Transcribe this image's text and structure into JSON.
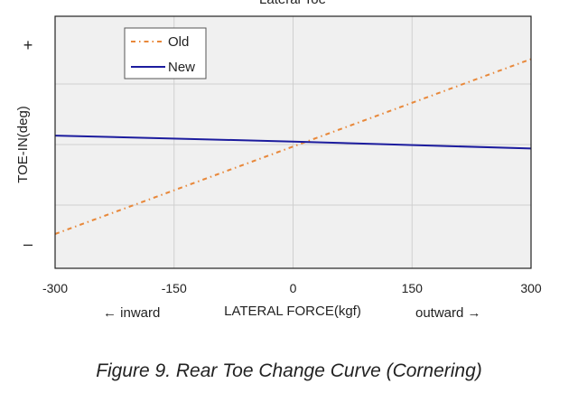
{
  "chart_data": {
    "type": "line",
    "title": "Lateral Toe",
    "xlabel": "LATERAL FORCE(kgf)",
    "ylabel": "TOE-IN(deg)",
    "xlim": [
      -300,
      300
    ],
    "ylim": [
      -1,
      1
    ],
    "x_ticks": [
      -300,
      -150,
      0,
      150,
      300
    ],
    "x_tick_labels": [
      "-300",
      "-150",
      "0",
      "150",
      "300"
    ],
    "y_ticks": [
      1,
      -1
    ],
    "y_tick_labels": [
      "+",
      "–"
    ],
    "grid": true,
    "legend_position": "top-left",
    "direction_labels": {
      "left": "← inward",
      "right": "outward →"
    },
    "series": [
      {
        "name": "Old",
        "x": [
          -300,
          300
        ],
        "y": [
          -0.9,
          0.86
        ],
        "color": "#e8883a",
        "style": "dashdot"
      },
      {
        "name": "New",
        "x": [
          -300,
          0,
          300
        ],
        "y": [
          0.09,
          0.03,
          -0.04
        ],
        "color": "#1c1c9e",
        "style": "solid"
      }
    ]
  },
  "caption": "Figure 9. Rear Toe Change Curve (Cornering)"
}
